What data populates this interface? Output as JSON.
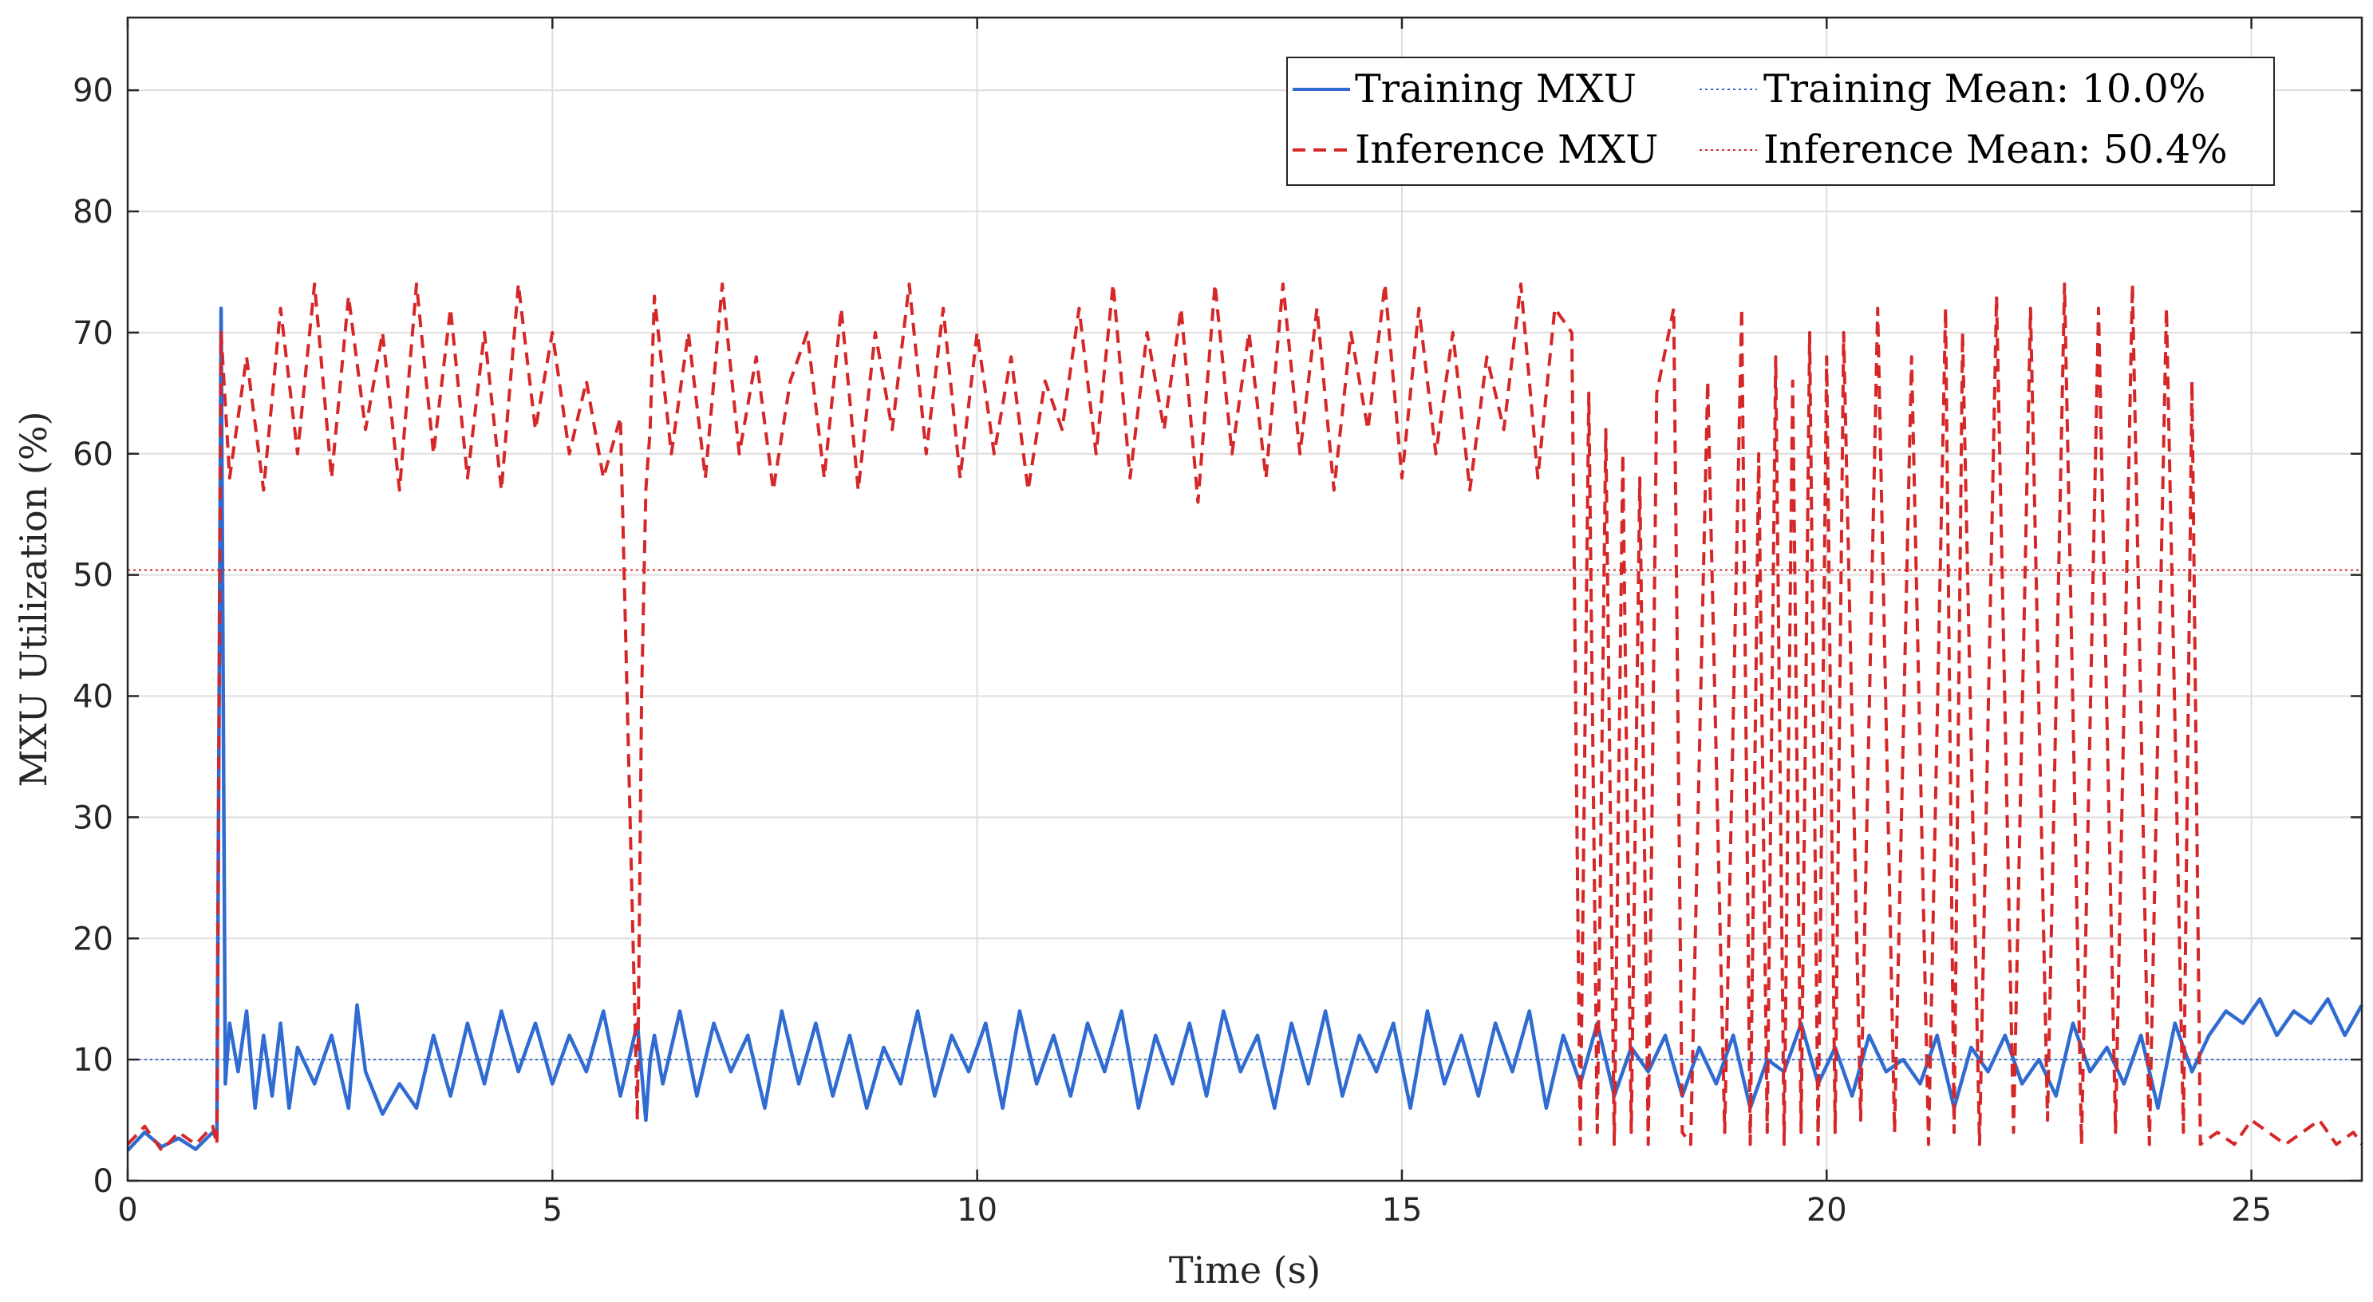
{
  "chart_data": {
    "type": "line",
    "title": "",
    "xlabel": "Time (s)",
    "ylabel": "MXU Utilization (%)",
    "xlim": [
      0,
      26.3
    ],
    "ylim": [
      0,
      96
    ],
    "xticks": [
      0,
      5,
      10,
      15,
      20,
      25
    ],
    "yticks": [
      0,
      10,
      20,
      30,
      40,
      50,
      60,
      70,
      80,
      90
    ],
    "grid": true,
    "legend_position": "top-right",
    "legend_columns": 2,
    "series": [
      {
        "name": "Training MXU",
        "style": "solid",
        "color": "#2f6bd1",
        "x": [
          0,
          0.2,
          0.4,
          0.6,
          0.8,
          1.0,
          1.05,
          1.1,
          1.15,
          1.2,
          1.3,
          1.4,
          1.5,
          1.6,
          1.7,
          1.8,
          1.9,
          2.0,
          2.2,
          2.4,
          2.6,
          2.7,
          2.8,
          3.0,
          3.2,
          3.4,
          3.6,
          3.8,
          4.0,
          4.2,
          4.4,
          4.6,
          4.8,
          5.0,
          5.2,
          5.4,
          5.6,
          5.8,
          6.0,
          6.1,
          6.15,
          6.2,
          6.3,
          6.5,
          6.7,
          6.9,
          7.1,
          7.3,
          7.5,
          7.7,
          7.9,
          8.1,
          8.3,
          8.5,
          8.7,
          8.9,
          9.1,
          9.3,
          9.5,
          9.7,
          9.9,
          10.1,
          10.3,
          10.5,
          10.7,
          10.9,
          11.1,
          11.3,
          11.5,
          11.7,
          11.9,
          12.1,
          12.3,
          12.5,
          12.7,
          12.9,
          13.1,
          13.3,
          13.5,
          13.7,
          13.9,
          14.1,
          14.3,
          14.5,
          14.7,
          14.9,
          15.1,
          15.3,
          15.5,
          15.7,
          15.9,
          16.1,
          16.3,
          16.5,
          16.7,
          16.9,
          17.1,
          17.3,
          17.5,
          17.7,
          17.9,
          18.1,
          18.3,
          18.5,
          18.7,
          18.9,
          19.1,
          19.3,
          19.5,
          19.7,
          19.9,
          20.1,
          20.3,
          20.5,
          20.7,
          20.9,
          21.1,
          21.3,
          21.5,
          21.7,
          21.9,
          22.1,
          22.3,
          22.5,
          22.7,
          22.9,
          23.1,
          23.3,
          23.5,
          23.7,
          23.9,
          24.1,
          24.3,
          24.5,
          24.7,
          24.9,
          25.1,
          25.3,
          25.5,
          25.7,
          25.9,
          26.1,
          26.3
        ],
        "y": [
          2.5,
          4,
          2.8,
          3.5,
          2.6,
          4,
          3.5,
          72,
          8,
          13,
          9,
          14,
          6,
          12,
          7,
          13,
          6,
          11,
          8,
          12,
          6,
          14.5,
          9,
          5.5,
          8,
          6,
          12,
          7,
          13,
          8,
          14,
          9,
          13,
          8,
          12,
          9,
          14,
          7,
          13,
          5,
          10,
          12,
          8,
          14,
          7,
          13,
          9,
          12,
          6,
          14,
          8,
          13,
          7,
          12,
          6,
          11,
          8,
          14,
          7,
          12,
          9,
          13,
          6,
          14,
          8,
          12,
          7,
          13,
          9,
          14,
          6,
          12,
          8,
          13,
          7,
          14,
          9,
          12,
          6,
          13,
          8,
          14,
          7,
          12,
          9,
          13,
          6,
          14,
          8,
          12,
          7,
          13,
          9,
          14,
          6,
          12,
          8,
          13,
          7,
          11,
          9,
          12,
          7,
          11,
          8,
          12,
          6,
          10,
          9,
          13,
          8,
          11,
          7,
          12,
          9,
          10,
          8,
          12,
          6,
          11,
          9,
          12,
          8,
          10,
          7,
          13,
          9,
          11,
          8,
          12,
          6,
          13,
          9,
          12,
          14,
          13,
          15,
          12,
          14,
          13,
          15,
          12,
          14.5
        ]
      },
      {
        "name": "Inference MXU",
        "style": "dashed",
        "color": "#d62728",
        "x": [
          0,
          0.2,
          0.4,
          0.6,
          0.8,
          1.0,
          1.05,
          1.1,
          1.2,
          1.4,
          1.6,
          1.8,
          2.0,
          2.2,
          2.4,
          2.6,
          2.8,
          3.0,
          3.2,
          3.4,
          3.6,
          3.8,
          4.0,
          4.2,
          4.4,
          4.6,
          4.8,
          5.0,
          5.2,
          5.4,
          5.6,
          5.8,
          6.0,
          6.05,
          6.1,
          6.15,
          6.2,
          6.4,
          6.6,
          6.8,
          7.0,
          7.2,
          7.4,
          7.6,
          7.8,
          8.0,
          8.2,
          8.4,
          8.6,
          8.8,
          9.0,
          9.2,
          9.4,
          9.6,
          9.8,
          10.0,
          10.2,
          10.4,
          10.6,
          10.8,
          11.0,
          11.2,
          11.4,
          11.6,
          11.8,
          12.0,
          12.2,
          12.4,
          12.6,
          12.8,
          13.0,
          13.2,
          13.4,
          13.6,
          13.8,
          14.0,
          14.2,
          14.4,
          14.6,
          14.8,
          15.0,
          15.2,
          15.4,
          15.6,
          15.8,
          16.0,
          16.2,
          16.4,
          16.6,
          16.8,
          17.0,
          17.1,
          17.2,
          17.3,
          17.4,
          17.5,
          17.6,
          17.7,
          17.8,
          17.9,
          18.0,
          18.2,
          18.3,
          18.4,
          18.6,
          18.8,
          19.0,
          19.1,
          19.2,
          19.3,
          19.4,
          19.5,
          19.6,
          19.7,
          19.8,
          19.9,
          20.0,
          20.1,
          20.2,
          20.4,
          20.6,
          20.8,
          21.0,
          21.2,
          21.4,
          21.5,
          21.6,
          21.8,
          22.0,
          22.2,
          22.4,
          22.6,
          22.8,
          23.0,
          23.2,
          23.4,
          23.6,
          23.8,
          24.0,
          24.2,
          24.3,
          24.4,
          24.6,
          24.8,
          25.0,
          25.2,
          25.4,
          25.6,
          25.8,
          26.0,
          26.2,
          26.3
        ],
        "y": [
          3,
          4.5,
          2.5,
          4,
          3,
          4.5,
          3,
          70,
          58,
          68,
          57,
          72,
          60,
          74,
          58,
          73,
          62,
          70,
          57,
          74,
          60,
          72,
          58,
          70,
          57,
          74,
          62,
          70,
          60,
          66,
          58,
          63,
          5,
          40,
          57,
          62,
          73,
          60,
          70,
          58,
          74,
          60,
          68,
          57,
          66,
          70,
          58,
          72,
          57,
          70,
          62,
          74,
          60,
          72,
          58,
          70,
          60,
          68,
          57,
          66,
          62,
          72,
          60,
          74,
          58,
          70,
          62,
          72,
          56,
          74,
          60,
          70,
          58,
          74,
          60,
          72,
          57,
          70,
          62,
          74,
          58,
          72,
          60,
          70,
          57,
          68,
          62,
          74,
          58,
          72,
          70,
          3,
          65,
          4,
          62,
          3,
          60,
          4,
          58,
          3,
          65,
          72,
          4,
          3,
          66,
          4,
          72,
          3,
          60,
          4,
          68,
          3,
          66,
          4,
          70,
          3,
          68,
          4,
          70,
          5,
          72,
          4,
          68,
          3,
          72,
          4,
          70,
          3,
          73,
          4,
          72,
          5,
          74,
          3,
          72,
          4,
          74,
          3,
          72,
          4,
          66,
          3,
          4,
          3,
          5,
          4,
          3,
          4,
          5,
          3,
          4,
          3
        ]
      },
      {
        "name": "Training Mean: 10.0%",
        "style": "dotted",
        "color": "#2f6bd1",
        "value": 10.0
      },
      {
        "name": "Inference Mean: 50.4%",
        "style": "dotted",
        "color": "#d62728",
        "value": 50.4
      }
    ]
  }
}
